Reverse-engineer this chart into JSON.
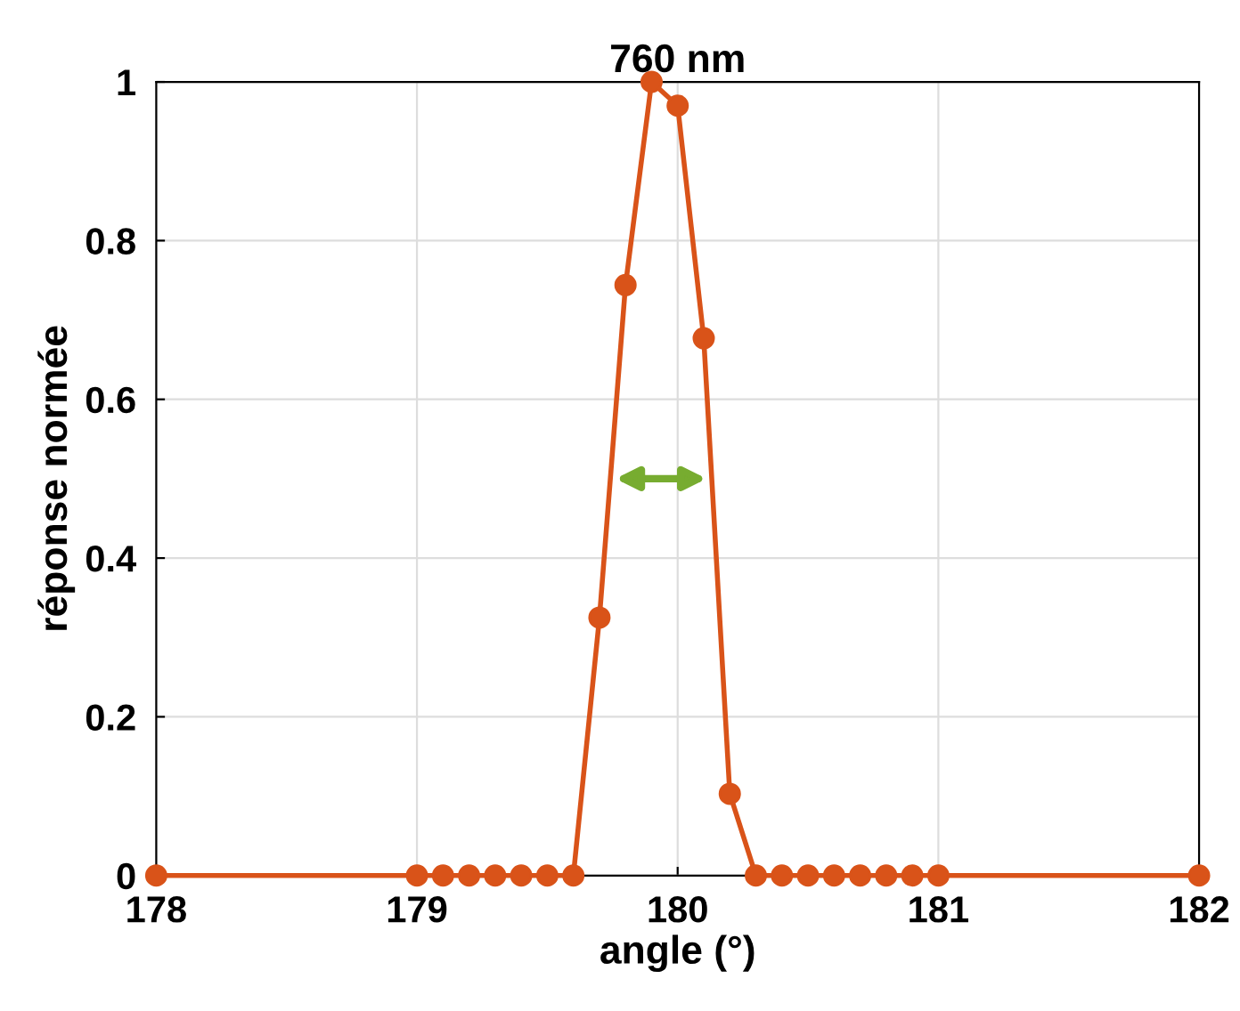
{
  "chart_data": {
    "type": "line",
    "title": "760 nm",
    "xlabel": "angle (°)",
    "ylabel": "réponse normée",
    "x": [
      178,
      179.0,
      179.1,
      179.2,
      179.3,
      179.4,
      179.5,
      179.6,
      179.7,
      179.8,
      179.9,
      180.0,
      180.1,
      180.2,
      180.3,
      180.4,
      180.5,
      180.6,
      180.7,
      180.8,
      180.9,
      181.0,
      182
    ],
    "series": [
      {
        "color": "#d95319",
        "values": [
          0,
          0,
          0,
          0,
          0,
          0,
          0,
          0,
          0.325,
          0.744,
          1.0,
          0.97,
          0.677,
          0.103,
          0,
          0,
          0,
          0,
          0,
          0,
          0,
          0,
          0
        ]
      }
    ],
    "xlim": [
      178,
      182
    ],
    "xticks": [
      178,
      179,
      180,
      181,
      182
    ],
    "ylim": [
      0,
      1
    ],
    "yticks": [
      0,
      0.2,
      0.4,
      0.6,
      0.8,
      1
    ],
    "grid": true,
    "marker": "circle",
    "line_style": "solid"
  }
}
